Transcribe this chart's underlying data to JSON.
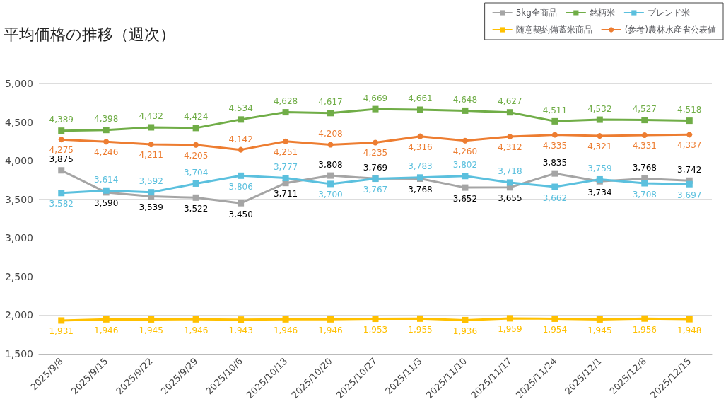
{
  "chart_data": {
    "type": "line",
    "title": "平均価格の推移（週次）",
    "categories": [
      "2025/9/8",
      "2025/9/15",
      "2025/9/22",
      "2025/9/29",
      "2025/10/6",
      "2025/10/13",
      "2025/10/20",
      "2025/10/27",
      "2025/11/3",
      "2025/11/10",
      "2025/11/17",
      "2025/11/24",
      "2025/12/1",
      "2025/12/8",
      "2025/12/15"
    ],
    "series": [
      {
        "name": "5kg全商品",
        "color": "#a5a5a5",
        "marker": "square",
        "values": [
          3875,
          3590,
          3539,
          3522,
          3450,
          3711,
          3808,
          3769,
          3768,
          3652,
          3655,
          3835,
          3734,
          3768,
          3742
        ],
        "value_labels": [
          "3,875",
          "3,590",
          "3,539",
          "3,522",
          "3,450",
          "3,711",
          "3,808",
          "3,769",
          "3,768",
          "3,652",
          "3,655",
          "3,835",
          "3,734",
          "3,768",
          "3,742"
        ]
      },
      {
        "name": "銘柄米",
        "color": "#70ad47",
        "marker": "square",
        "values": [
          4389,
          4398,
          4432,
          4424,
          4534,
          4628,
          4617,
          4669,
          4661,
          4648,
          4627,
          4511,
          4532,
          4527,
          4518
        ],
        "value_labels": [
          "4,389",
          "4,398",
          "4,432",
          "4,424",
          "4,534",
          "4,628",
          "4,617",
          "4,669",
          "4,661",
          "4,648",
          "4,627",
          "4,511",
          "4,532",
          "4,527",
          "4,518"
        ]
      },
      {
        "name": "ブレンド米",
        "color": "#5bc0de",
        "marker": "square",
        "values": [
          3582,
          3614,
          3592,
          3704,
          3806,
          3777,
          3700,
          3767,
          3783,
          3802,
          3718,
          3662,
          3759,
          3708,
          3697
        ],
        "value_labels": [
          "3,582",
          "3,614",
          "3,592",
          "3,704",
          "3,806",
          "3,777",
          "3,700",
          "3,767",
          "3,783",
          "3,802",
          "3,718",
          "3,662",
          "3,759",
          "3,708",
          "3,697"
        ]
      },
      {
        "name": "随意契約備蓄米商品",
        "color": "#ffc000",
        "marker": "square",
        "values": [
          1931,
          1946,
          1945,
          1946,
          1943,
          1946,
          1946,
          1953,
          1955,
          1936,
          1959,
          1954,
          1945,
          1956,
          1948
        ],
        "value_labels": [
          "1,931",
          "1,946",
          "1,945",
          "1,946",
          "1,943",
          "1,946",
          "1,946",
          "1,953",
          "1,955",
          "1,936",
          "1,959",
          "1,954",
          "1,945",
          "1,956",
          "1,948"
        ]
      },
      {
        "name": "(参考)農林水産省公表値",
        "color": "#ed7d31",
        "marker": "circle",
        "values": [
          4275,
          4246,
          4211,
          4205,
          4142,
          4251,
          4208,
          4235,
          4316,
          4260,
          4312,
          4335,
          4321,
          4331,
          4337
        ],
        "value_labels": [
          "4,275",
          "4,246",
          "4,211",
          "4,205",
          "4,142",
          "4,251",
          "4,208",
          "4,235",
          "4,316",
          "4,260",
          "4,312",
          "4,335",
          "4,321",
          "4,331",
          "4,337"
        ]
      }
    ],
    "ylim": [
      1500,
      5000
    ],
    "yticks": [
      {
        "value": 1500,
        "label": "1,500"
      },
      {
        "value": 2000,
        "label": "2,000"
      },
      {
        "value": 2500,
        "label": "2,500"
      },
      {
        "value": 3000,
        "label": "3,000"
      },
      {
        "value": 3500,
        "label": "3,500"
      },
      {
        "value": 4000,
        "label": "4,000"
      },
      {
        "value": 4500,
        "label": "4,500"
      },
      {
        "value": 5000,
        "label": "5,000"
      }
    ],
    "grid": "y",
    "legend": "top right"
  }
}
